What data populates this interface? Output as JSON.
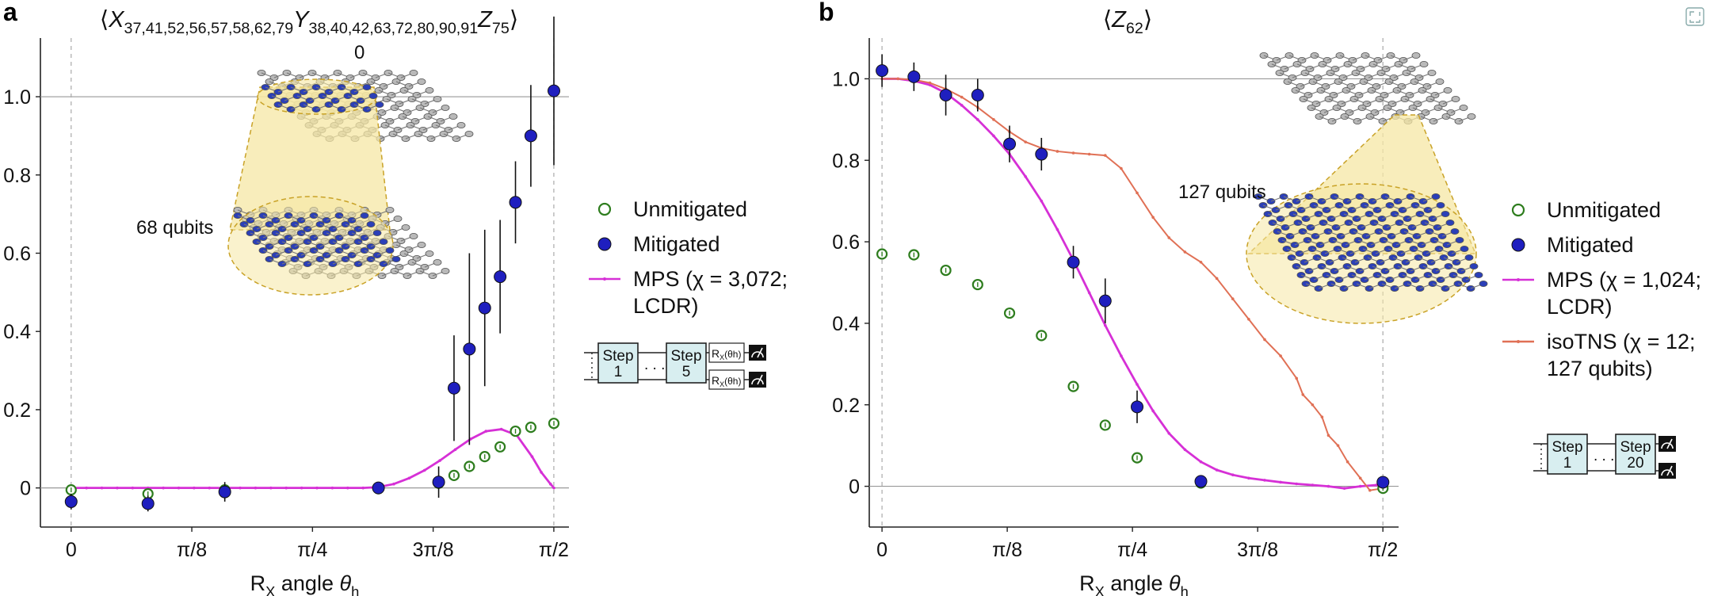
{
  "panels": [
    {
      "letter": "a",
      "title_parts": [
        {
          "t": "⟨",
          "s": "main"
        },
        {
          "t": "X",
          "s": "var"
        },
        {
          "t": "37,41,52,56,57,58,62,79",
          "s": "sub"
        },
        {
          "t": "Y",
          "s": "var"
        },
        {
          "t": "38,40,42,63,72,80,90,91",
          "s": "sub"
        },
        {
          "t": "Z",
          "s": "var"
        },
        {
          "t": "75",
          "s": "sub"
        },
        {
          "t": "⟩",
          "s": "main"
        }
      ],
      "inset_top_label": "0",
      "inset_label": "68 qubits",
      "circuit": {
        "steps": [
          "Step|1",
          "Step|5"
        ],
        "gate_label": "R",
        "gate_sub": "X",
        "gate_arg": "(θh)"
      }
    },
    {
      "letter": "b",
      "title_parts": [
        {
          "t": "⟨",
          "s": "main"
        },
        {
          "t": "Z",
          "s": "var"
        },
        {
          "t": "62",
          "s": "sub"
        },
        {
          "t": "⟩",
          "s": "main"
        }
      ],
      "inset_label": "127 qubits",
      "circuit": {
        "steps": [
          "Step|1",
          "Step|20"
        ]
      }
    }
  ],
  "xlabel_parts": [
    {
      "t": "R",
      "s": "main"
    },
    {
      "t": "X",
      "s": "sub"
    },
    {
      "t": " angle ",
      "s": "main"
    },
    {
      "t": "θ",
      "s": "var"
    },
    {
      "t": "h",
      "s": "sub"
    }
  ],
  "legend_a": [
    {
      "label": "Unmitigated",
      "kind": "open-circle",
      "color": "#2e7d1e"
    },
    {
      "label": "Mitigated",
      "kind": "filled-circle",
      "color": "#1f1fbf"
    },
    {
      "label": "MPS (χ = 3,072;",
      "label2": "LCDR)",
      "kind": "line",
      "color": "#d630d6"
    }
  ],
  "legend_b": [
    {
      "label": "Unmitigated",
      "kind": "open-circle",
      "color": "#2e7d1e"
    },
    {
      "label": "Mitigated",
      "kind": "filled-circle",
      "color": "#1f1fbf"
    },
    {
      "label": "MPS (χ = 1,024;",
      "label2": "LCDR)",
      "kind": "line",
      "color": "#d630d6"
    },
    {
      "label": "isoTNS (χ = 12;",
      "label2": "127 qubits)",
      "kind": "line",
      "color": "#e07055"
    }
  ],
  "colors": {
    "unmitigated": "#2e7d1e",
    "mitigated": "#1f1fbf",
    "mps": "#d630d6",
    "isotns": "#e07055",
    "inset_fill": "#f6e7a4",
    "inset_edge": "#c9a227",
    "qubit_blue": "#2b3fb8",
    "qubit_gray": "#b9b9b9"
  },
  "chart_data": [
    {
      "type": "scatter",
      "panel": "a",
      "xlabel": "RX angle θh",
      "ylabel": "",
      "xlim": [
        -0.1,
        1.62
      ],
      "ylim": [
        -0.1,
        1.15
      ],
      "xticks": [
        {
          "v": 0,
          "label": "0"
        },
        {
          "v": 0.3927,
          "label": "π/8"
        },
        {
          "v": 0.7854,
          "label": "π/4"
        },
        {
          "v": 1.1781,
          "label": "3π/8"
        },
        {
          "v": 1.5708,
          "label": "π/2"
        }
      ],
      "yticks": [
        0,
        0.2,
        0.4,
        0.6,
        0.8,
        1.0
      ],
      "ytick_labels": [
        "0",
        "0.2",
        "0.4",
        "0.6",
        "0.8",
        "1.0"
      ],
      "series": [
        {
          "name": "Unmitigated",
          "x": [
            0,
            0.25,
            0.5,
            1.0,
            1.196,
            1.246,
            1.296,
            1.346,
            1.396,
            1.446,
            1.496,
            1.571
          ],
          "y": [
            -0.005,
            -0.015,
            -0.005,
            -0.002,
            0.012,
            0.032,
            0.055,
            0.08,
            0.105,
            0.145,
            0.155,
            0.165
          ]
        },
        {
          "name": "Mitigated",
          "x": [
            0,
            0.25,
            0.5,
            1.0,
            1.196,
            1.246,
            1.296,
            1.346,
            1.396,
            1.446,
            1.496,
            1.571
          ],
          "y": [
            -0.035,
            -0.04,
            -0.01,
            0.0,
            0.015,
            0.255,
            0.355,
            0.46,
            0.54,
            0.73,
            0.9,
            1.015
          ],
          "err": [
            0.02,
            0.02,
            0.025,
            0.015,
            0.04,
            0.135,
            0.245,
            0.2,
            0.145,
            0.105,
            0.13,
            0.19
          ]
        },
        {
          "name": "MPS (χ = 3,072; LCDR)",
          "x": [
            0,
            0.05,
            0.1,
            0.15,
            0.2,
            0.25,
            0.3,
            0.35,
            0.4,
            0.45,
            0.5,
            0.55,
            0.6,
            0.65,
            0.7,
            0.75,
            0.8,
            0.85,
            0.9,
            0.95,
            1.0,
            1.05,
            1.1,
            1.15,
            1.2,
            1.25,
            1.3,
            1.35,
            1.4,
            1.45,
            1.5,
            1.53,
            1.56,
            1.571
          ],
          "y": [
            0,
            0,
            0,
            0,
            0,
            0,
            0,
            0,
            0,
            0,
            0,
            0,
            0,
            0,
            0,
            0,
            0,
            0,
            0,
            0,
            0.002,
            0.01,
            0.025,
            0.045,
            0.07,
            0.098,
            0.125,
            0.145,
            0.15,
            0.135,
            0.08,
            0.04,
            0.01,
            0.0
          ]
        }
      ]
    },
    {
      "type": "scatter",
      "panel": "b",
      "xlabel": "RX angle θh",
      "ylabel": "",
      "xlim": [
        -0.04,
        1.62
      ],
      "ylim": [
        -0.1,
        1.1
      ],
      "xticks": [
        {
          "v": 0,
          "label": "0"
        },
        {
          "v": 0.3927,
          "label": "π/8"
        },
        {
          "v": 0.7854,
          "label": "π/4"
        },
        {
          "v": 1.1781,
          "label": "3π/8"
        },
        {
          "v": 1.5708,
          "label": "π/2"
        }
      ],
      "yticks": [
        0,
        0.2,
        0.4,
        0.6,
        0.8,
        1.0
      ],
      "ytick_labels": [
        "0",
        "0.2",
        "0.4",
        "0.6",
        "0.8",
        "1.0"
      ],
      "series": [
        {
          "name": "Unmitigated",
          "x": [
            0,
            0.1,
            0.2,
            0.3,
            0.4,
            0.5,
            0.6,
            0.7,
            0.8,
            1.0,
            1.571
          ],
          "y": [
            0.57,
            0.568,
            0.53,
            0.495,
            0.425,
            0.37,
            0.245,
            0.15,
            0.07,
            0.008,
            -0.005
          ]
        },
        {
          "name": "Mitigated",
          "x": [
            0,
            0.1,
            0.2,
            0.3,
            0.4,
            0.5,
            0.6,
            0.7,
            0.8,
            1.0,
            1.571
          ],
          "y": [
            1.02,
            1.005,
            0.96,
            0.96,
            0.84,
            0.815,
            0.55,
            0.455,
            0.195,
            0.012,
            0.01
          ],
          "err": [
            0.04,
            0.035,
            0.05,
            0.04,
            0.045,
            0.04,
            0.04,
            0.055,
            0.04,
            0.0,
            0.0
          ]
        },
        {
          "name": "MPS (χ = 1,024; LCDR)",
          "x": [
            0,
            0.05,
            0.1,
            0.15,
            0.2,
            0.25,
            0.3,
            0.35,
            0.4,
            0.45,
            0.5,
            0.55,
            0.6,
            0.65,
            0.7,
            0.75,
            0.8,
            0.85,
            0.9,
            0.95,
            1.0,
            1.05,
            1.1,
            1.15,
            1.2,
            1.25,
            1.3,
            1.35,
            1.4,
            1.45,
            1.5,
            1.55,
            1.571
          ],
          "y": [
            1.0,
            1.0,
            0.995,
            0.985,
            0.965,
            0.935,
            0.9,
            0.86,
            0.815,
            0.76,
            0.7,
            0.63,
            0.555,
            0.475,
            0.395,
            0.32,
            0.25,
            0.185,
            0.13,
            0.09,
            0.06,
            0.04,
            0.028,
            0.02,
            0.015,
            0.01,
            0.006,
            0.003,
            0.0,
            -0.005,
            0.0,
            0.003,
            0.005
          ]
        },
        {
          "name": "isoTNS (χ = 12; 127 qubits)",
          "x": [
            0,
            0.05,
            0.1,
            0.15,
            0.2,
            0.25,
            0.3,
            0.35,
            0.4,
            0.45,
            0.5,
            0.55,
            0.6,
            0.65,
            0.7,
            0.75,
            0.8,
            0.85,
            0.9,
            0.95,
            1.0,
            1.05,
            1.1,
            1.15,
            1.2,
            1.25,
            1.3,
            1.32,
            1.35,
            1.38,
            1.4,
            1.43,
            1.46,
            1.5,
            1.53,
            1.571
          ],
          "y": [
            1.0,
            1.0,
            0.998,
            0.99,
            0.975,
            0.955,
            0.93,
            0.9,
            0.87,
            0.845,
            0.83,
            0.822,
            0.818,
            0.815,
            0.812,
            0.78,
            0.72,
            0.66,
            0.61,
            0.575,
            0.55,
            0.51,
            0.46,
            0.41,
            0.36,
            0.32,
            0.265,
            0.225,
            0.2,
            0.17,
            0.125,
            0.1,
            0.06,
            0.02,
            -0.01,
            -0.005
          ]
        }
      ]
    }
  ]
}
